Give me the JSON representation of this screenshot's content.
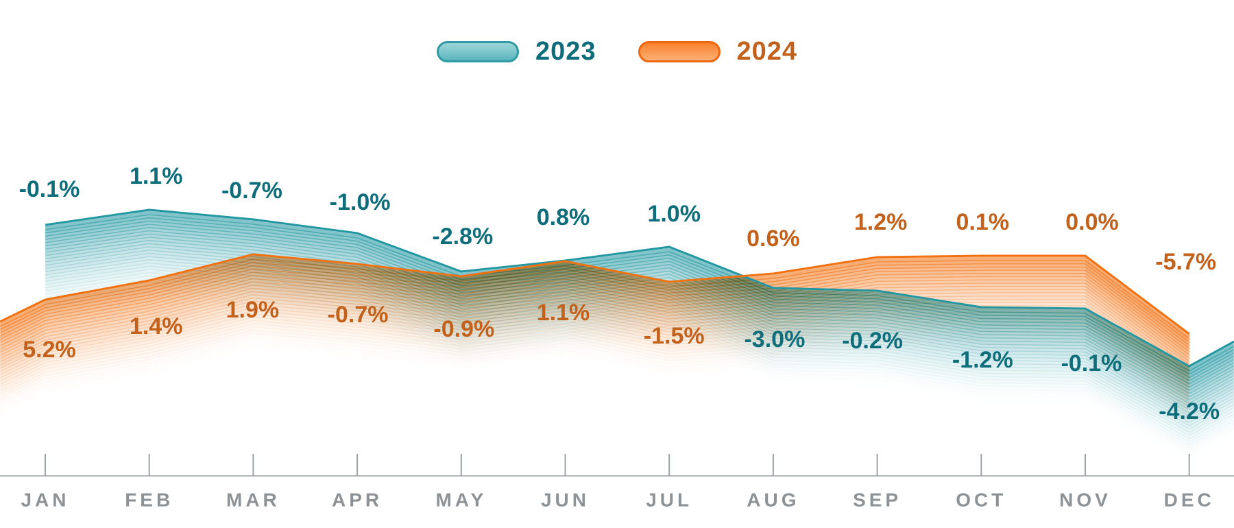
{
  "chart_data": {
    "type": "line",
    "title": "",
    "categories": [
      "JAN",
      "FEB",
      "MAR",
      "APR",
      "MAY",
      "JUN",
      "JUL",
      "AUG",
      "SEP",
      "OCT",
      "NOV",
      "DEC"
    ],
    "series": [
      {
        "name": "2023",
        "values": [
          -0.1,
          1.1,
          -0.7,
          -1.0,
          -2.8,
          0.8,
          1.0,
          -3.0,
          -0.2,
          -1.2,
          -0.1,
          -4.2
        ],
        "line_color": "#2297a2",
        "label_color": "#0d6d7a",
        "swatch": {
          "border": "#2f9aa3",
          "gradient_top": "#9ed6da",
          "gradient_bottom": "#58b5bc"
        }
      },
      {
        "name": "2024",
        "values": [
          5.2,
          1.4,
          1.9,
          -0.7,
          -0.9,
          1.1,
          -1.5,
          0.6,
          1.2,
          0.1,
          0.0,
          -5.7
        ],
        "line_color": "#f1700f",
        "label_color": "#c2611b",
        "swatch": {
          "border": "#ee660e",
          "gradient_top": "#f8822c",
          "gradient_bottom": "#fcb078"
        }
      }
    ],
    "value_suffix": "%",
    "legend_position": "top-center",
    "x_axis": {
      "line_color": "#b4b7b9",
      "tick_color": "#9da2a5",
      "label_color": "#8d9296"
    }
  }
}
